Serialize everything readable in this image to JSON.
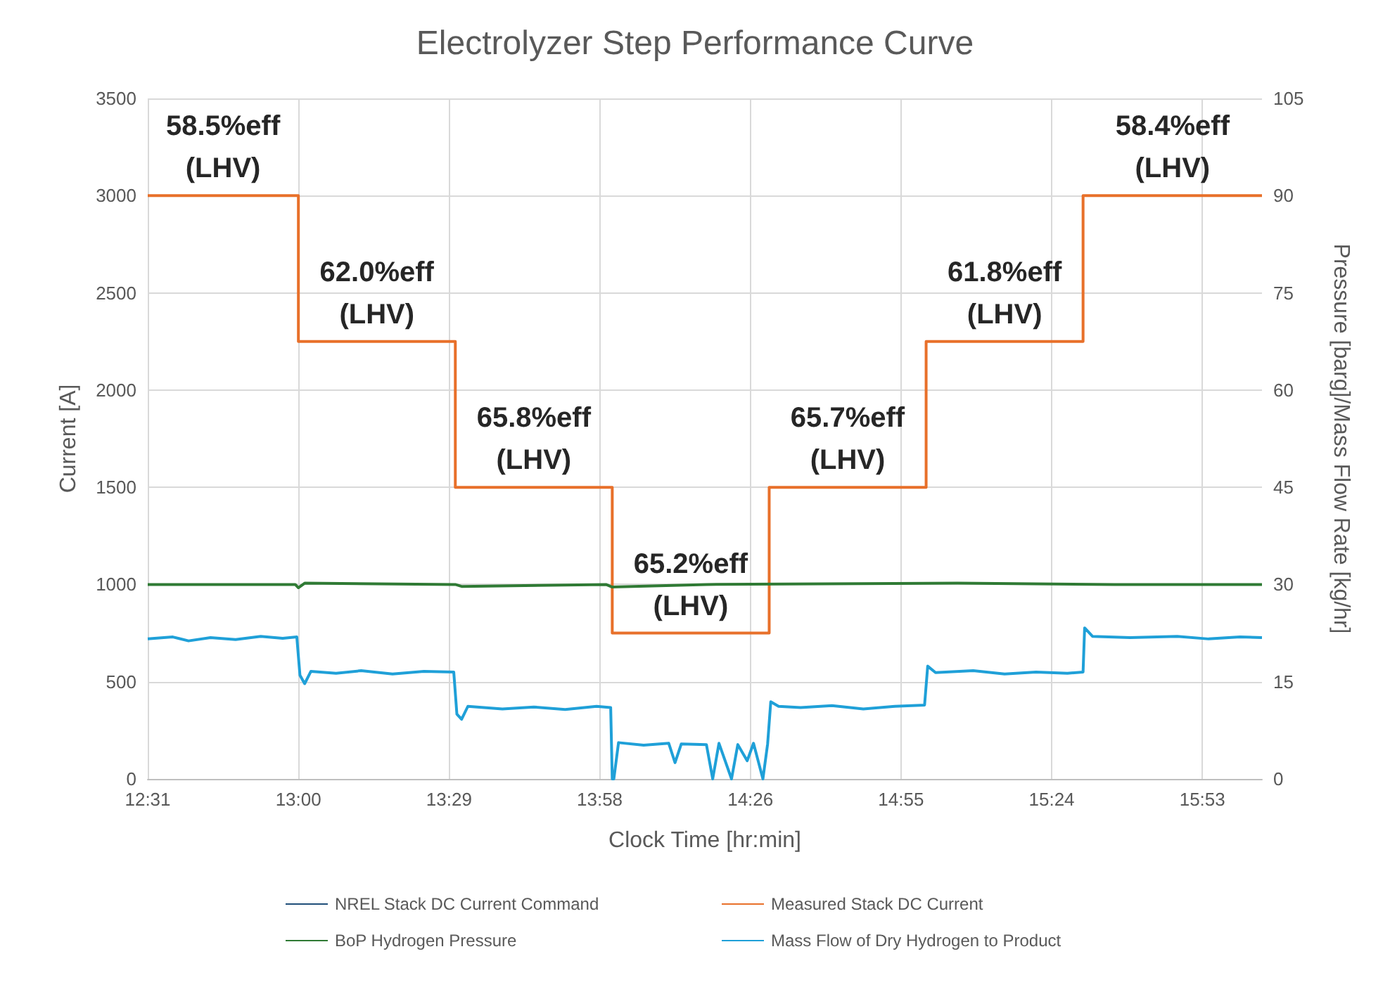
{
  "chart_data": {
    "type": "line",
    "title": "Electrolyzer Step Performance Curve",
    "xlabel": "Clock Time [hr:min]",
    "ylabel": "Current [A]",
    "y2label": "Pressure [barg]/Mass Flow Rate [kg/hr]",
    "xlim": [
      12.52,
      16.07
    ],
    "xticks": [
      {
        "value": 12.52,
        "label": "12:31"
      },
      {
        "value": 13.0,
        "label": "13:00"
      },
      {
        "value": 13.48,
        "label": "13:29"
      },
      {
        "value": 13.96,
        "label": "13:58"
      },
      {
        "value": 14.44,
        "label": "14:26"
      },
      {
        "value": 14.92,
        "label": "14:55"
      },
      {
        "value": 15.4,
        "label": "15:24"
      },
      {
        "value": 15.88,
        "label": "15:53"
      }
    ],
    "ylim": [
      0,
      3500
    ],
    "yticks": [
      0,
      500,
      1000,
      1500,
      2000,
      2500,
      3000,
      3500
    ],
    "y2lim": [
      0,
      105
    ],
    "y2ticks": [
      0,
      15,
      30,
      45,
      60,
      75,
      90,
      105
    ],
    "grid": true,
    "legend": "bottom",
    "marker": "none",
    "line_style": "solid",
    "series": [
      {
        "name": "NREL Stack DC Current Command",
        "type": "step",
        "color": "#1f4e79"
      },
      {
        "name": "Measured Stack DC Current",
        "type": "step",
        "color": "#e8702a",
        "x": [
          12.52,
          13.0,
          13.5,
          14.0,
          14.5,
          15.0,
          15.5,
          16.07
        ],
        "values": [
          3000,
          2250,
          1500,
          750,
          1500,
          2250,
          3000,
          3000
        ]
      },
      {
        "name": "BoP Hydrogen Pressure",
        "axis": "y2",
        "color": "#2f7a34",
        "x": [
          12.52,
          12.99,
          13.0,
          13.02,
          13.5,
          13.52,
          13.98,
          14.0,
          14.3,
          15.1,
          15.6,
          16.07
        ],
        "values": [
          30,
          30,
          29.5,
          30.2,
          30,
          29.7,
          30,
          29.6,
          30,
          30.2,
          30,
          30
        ]
      },
      {
        "name": "Mass Flow of Dry Hydrogen to Product",
        "axis": "y2",
        "color": "#1fa0d8",
        "x": [
          12.52,
          12.6,
          12.65,
          12.72,
          12.8,
          12.88,
          12.95,
          12.995,
          13.005,
          13.02,
          13.04,
          13.12,
          13.2,
          13.3,
          13.4,
          13.495,
          13.505,
          13.52,
          13.54,
          13.65,
          13.75,
          13.85,
          13.95,
          13.995,
          14.0,
          14.005,
          14.02,
          14.1,
          14.18,
          14.2,
          14.22,
          14.3,
          14.32,
          14.34,
          14.38,
          14.4,
          14.43,
          14.45,
          14.48,
          14.495,
          14.505,
          14.53,
          14.6,
          14.7,
          14.8,
          14.9,
          14.995,
          15.005,
          15.03,
          15.15,
          15.25,
          15.35,
          15.45,
          15.5,
          15.505,
          15.53,
          15.65,
          15.8,
          15.9,
          16.0,
          16.07
        ],
        "values": [
          21.6,
          21.9,
          21.3,
          21.8,
          21.5,
          22.0,
          21.7,
          21.9,
          16.0,
          14.7,
          16.6,
          16.3,
          16.7,
          16.2,
          16.6,
          16.5,
          10.0,
          9.2,
          11.2,
          10.8,
          11.1,
          10.7,
          11.2,
          11.0,
          0,
          0,
          5.6,
          5.2,
          5.5,
          2.5,
          5.4,
          5.3,
          0,
          5.5,
          0,
          5.3,
          2.8,
          5.5,
          0,
          5.4,
          11.9,
          11.2,
          11.0,
          11.3,
          10.8,
          11.2,
          11.4,
          17.4,
          16.4,
          16.7,
          16.2,
          16.5,
          16.3,
          16.5,
          23.3,
          22.0,
          21.8,
          22.0,
          21.6,
          21.9,
          21.8
        ]
      }
    ],
    "annotations": [
      "58.5%eff\n(LHV)",
      "62.0%eff\n(LHV)",
      "65.8%eff\n(LHV)",
      "65.2%eff\n(LHV)",
      "65.7%eff\n(LHV)",
      "61.8%eff\n(LHV)",
      "58.4%eff\n(LHV)"
    ]
  }
}
